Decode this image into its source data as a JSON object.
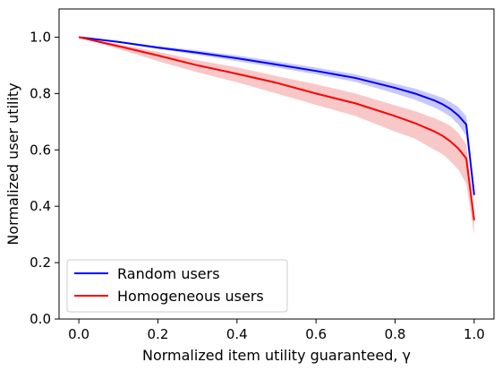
{
  "chart_data": {
    "type": "line",
    "title": "",
    "xlabel": "Normalized item utility guaranteed, γ",
    "ylabel": "Normalized user utility",
    "xlim": [
      -0.05,
      1.05
    ],
    "ylim": [
      0.0,
      1.1
    ],
    "xticks": [
      "0.0",
      "0.2",
      "0.4",
      "0.6",
      "0.8",
      "1.0"
    ],
    "yticks": [
      "0.0",
      "0.2",
      "0.4",
      "0.6",
      "0.8",
      "1.0"
    ],
    "grid": false,
    "legend_position": "lower-left",
    "series": [
      {
        "name": "Random users",
        "color": "#0000ff",
        "band_color": "#aaaaff",
        "x": [
          0,
          0.1,
          0.2,
          0.3,
          0.4,
          0.5,
          0.6,
          0.7,
          0.8,
          0.85,
          0.9,
          0.92,
          0.94,
          0.96,
          0.98,
          1.0
        ],
        "y": [
          1.0,
          0.983,
          0.963,
          0.945,
          0.925,
          0.903,
          0.88,
          0.855,
          0.82,
          0.8,
          0.775,
          0.762,
          0.745,
          0.722,
          0.69,
          0.44
        ],
        "y_low": [
          1.0,
          0.981,
          0.958,
          0.937,
          0.915,
          0.892,
          0.868,
          0.841,
          0.8,
          0.778,
          0.75,
          0.735,
          0.718,
          0.69,
          0.65,
          0.43
        ],
        "y_high": [
          1.0,
          0.986,
          0.968,
          0.953,
          0.935,
          0.914,
          0.892,
          0.868,
          0.835,
          0.818,
          0.795,
          0.785,
          0.77,
          0.752,
          0.72,
          0.45
        ]
      },
      {
        "name": "Homogeneous users",
        "color": "#ff0000",
        "band_color": "#f4aaaa",
        "x": [
          0,
          0.1,
          0.2,
          0.3,
          0.4,
          0.5,
          0.6,
          0.7,
          0.8,
          0.85,
          0.9,
          0.92,
          0.94,
          0.96,
          0.98,
          1.0
        ],
        "y": [
          1.0,
          0.968,
          0.935,
          0.9,
          0.87,
          0.838,
          0.8,
          0.765,
          0.72,
          0.695,
          0.665,
          0.65,
          0.63,
          0.605,
          0.57,
          0.35
        ],
        "y_low": [
          1.0,
          0.958,
          0.915,
          0.875,
          0.84,
          0.8,
          0.76,
          0.72,
          0.665,
          0.64,
          0.6,
          0.585,
          0.56,
          0.53,
          0.48,
          0.3
        ],
        "y_high": [
          1.0,
          0.975,
          0.948,
          0.918,
          0.893,
          0.862,
          0.833,
          0.8,
          0.758,
          0.738,
          0.712,
          0.7,
          0.685,
          0.66,
          0.62,
          0.38
        ]
      }
    ]
  }
}
